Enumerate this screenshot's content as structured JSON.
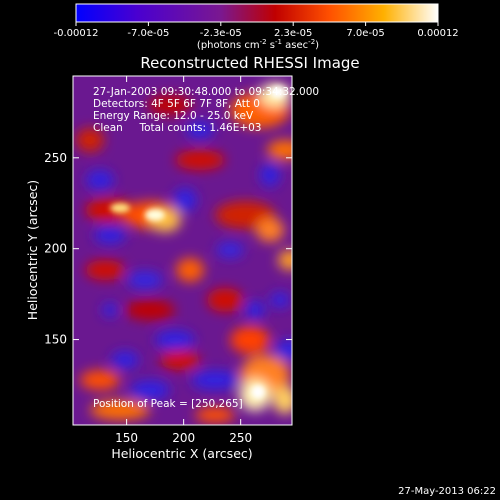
{
  "colorbar": {
    "tick_labels": [
      "-0.00012",
      "-7.0e-05",
      "-2.3e-05",
      "2.3e-05",
      "7.0e-05",
      "0.00012"
    ],
    "units_prefix": "(photons cm",
    "units_exp1": "-2",
    "units_mid": " s",
    "units_exp2": "-1",
    "units_mid2": " asec",
    "units_exp3": "-2",
    "units_suffix": ")",
    "colors": [
      "#0000ff",
      "#4a00d0",
      "#7a1890",
      "#c00000",
      "#ff5000",
      "#ffb000",
      "#ffffff"
    ]
  },
  "title": "Reconstructed RHESSI Image",
  "info": {
    "line1": "27-Jan-2003 09:30:48.000 to 09:34:32.000",
    "line2": "Detectors: 4F 5F 6F 7F 8F, Att 0",
    "line3": "Energy Range: 12.0 - 25.0 keV",
    "line4": "Clean     Total counts: 1.46E+03",
    "peak": "Position of Peak = [250,265]"
  },
  "axes": {
    "xlabel": "Heliocentric X (arcsec)",
    "ylabel": "Heliocentric Y (arcsec)",
    "xticks": [
      "150",
      "200",
      "250"
    ],
    "yticks": [
      "250",
      "200",
      "150"
    ],
    "xtick_values": [
      150,
      200,
      250
    ],
    "ytick_values": [
      250,
      200,
      150
    ],
    "xlim": [
      103,
      295
    ],
    "ylim": [
      103,
      295
    ]
  },
  "timestamp": "27-May-2013 06:22"
}
